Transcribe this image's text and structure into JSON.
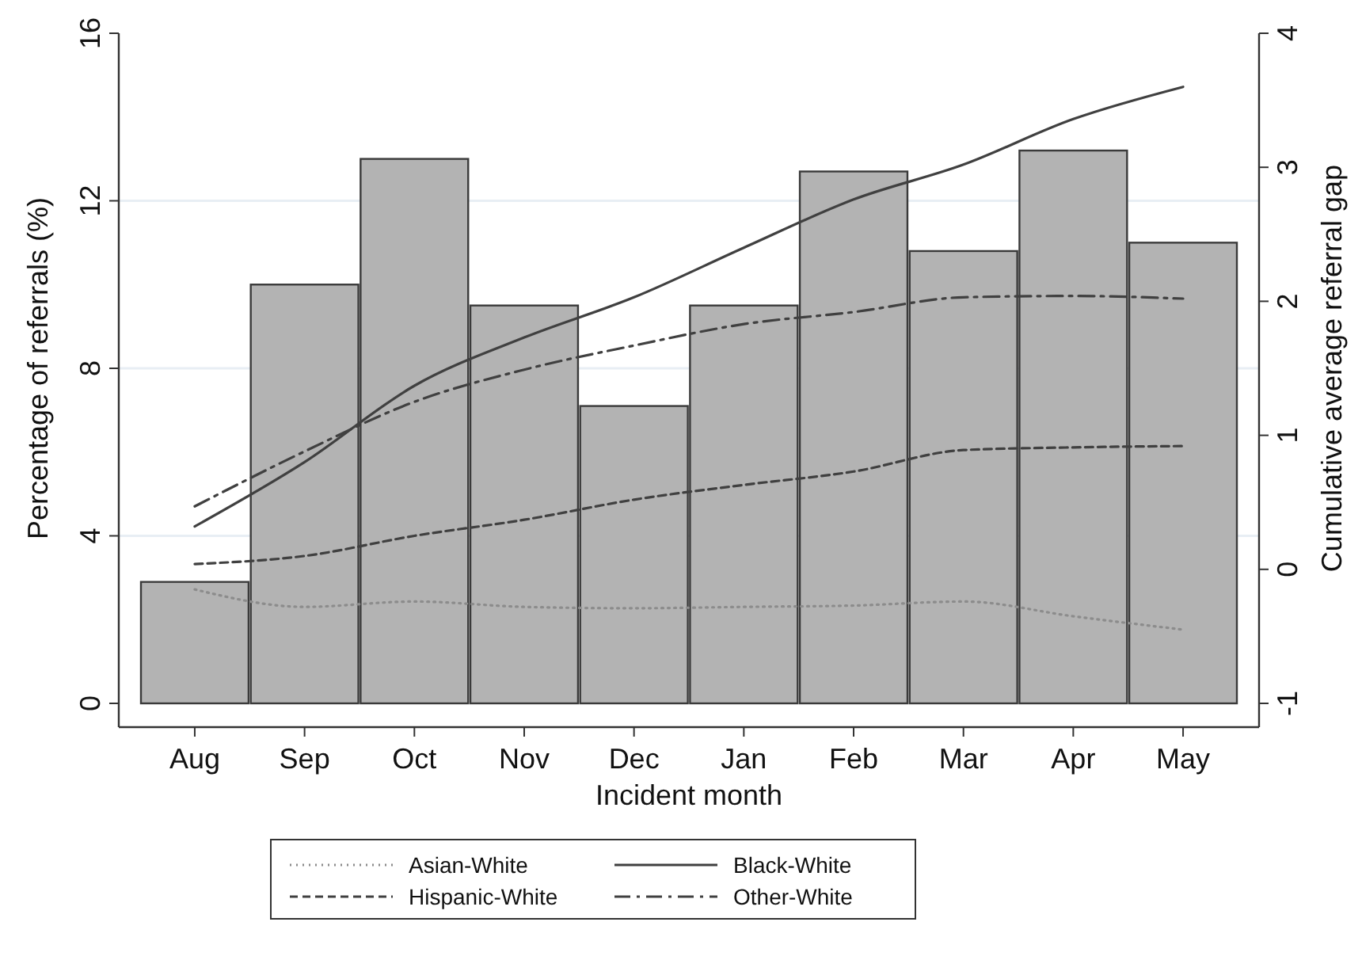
{
  "chart_data": {
    "type": "bar",
    "xlabel": "Incident month",
    "ylabel": "Percentage of referrals (%)",
    "y2label": "Cumulative average referral gap",
    "categories": [
      "Aug",
      "Sep",
      "Oct",
      "Nov",
      "Dec",
      "Jan",
      "Feb",
      "Mar",
      "Apr",
      "May"
    ],
    "series": [
      {
        "color": "#b3b3b3",
        "values": [
          2.9,
          10.0,
          13.0,
          9.5,
          7.1,
          9.5,
          12.7,
          10.8,
          13.2,
          11.0
        ]
      },
      {
        "type": "line",
        "name": "Asian-White",
        "axis": "y2",
        "color": "#8c8c8c",
        "line_style": "dotted",
        "values": [
          -0.15,
          -0.28,
          -0.24,
          -0.28,
          -0.29,
          -0.28,
          -0.27,
          -0.24,
          -0.35,
          -0.45
        ]
      },
      {
        "type": "line",
        "name": "Black-White",
        "axis": "y2",
        "color": "#404040",
        "line_style": "solid",
        "values": [
          0.32,
          0.8,
          1.37,
          1.73,
          2.03,
          2.4,
          2.76,
          3.02,
          3.36,
          3.6
        ]
      },
      {
        "type": "line",
        "name": "Hispanic-White",
        "axis": "y2",
        "color": "#404040",
        "line_style": "dashed",
        "values": [
          0.04,
          0.1,
          0.25,
          0.37,
          0.52,
          0.63,
          0.73,
          0.89,
          0.91,
          0.92
        ]
      },
      {
        "type": "line",
        "name": "Other-White",
        "axis": "y2",
        "color": "#404040",
        "line_style": "dashdot",
        "values": [
          0.47,
          0.88,
          1.25,
          1.49,
          1.67,
          1.83,
          1.92,
          2.03,
          2.04,
          2.02
        ]
      }
    ],
    "ylim": [
      0,
      16
    ],
    "yticks": [
      0,
      4,
      8,
      12,
      16
    ],
    "y2lim": [
      -1,
      4
    ],
    "y2ticks": [
      -1,
      0,
      1,
      2,
      3,
      4
    ],
    "grid": "y",
    "legend": "bottom"
  }
}
